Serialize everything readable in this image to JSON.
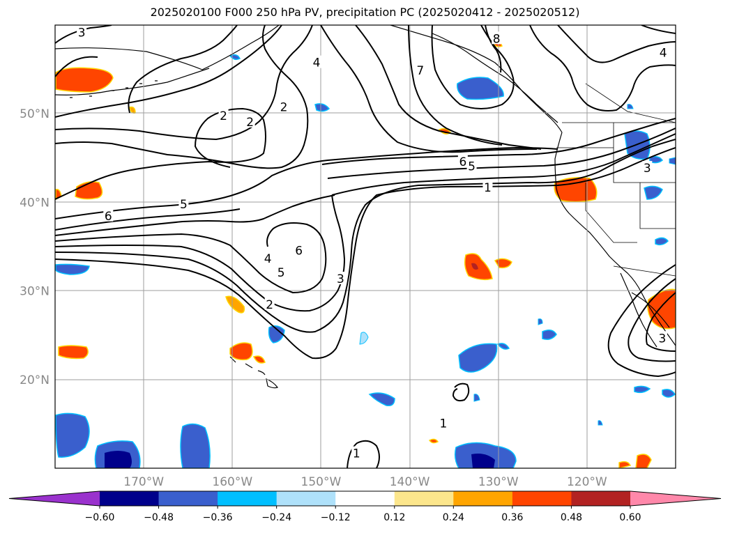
{
  "title": "2025020100 F000 250 hPa PV, precipitation PC (2025020412 - 2025020512)",
  "map": {
    "lon_range": [
      -180,
      -110
    ],
    "lat_range": [
      10,
      60
    ],
    "lat_ticks": [
      {
        "value": 50,
        "label": "50°N"
      },
      {
        "value": 40,
        "label": "40°N"
      },
      {
        "value": 30,
        "label": "30°N"
      },
      {
        "value": 20,
        "label": "20°N"
      }
    ],
    "lon_ticks": [
      {
        "value": -170,
        "label": "170°W"
      },
      {
        "value": -160,
        "label": "160°W"
      },
      {
        "value": -150,
        "label": "150°W"
      },
      {
        "value": -140,
        "label": "140°W"
      },
      {
        "value": -130,
        "label": "130°W"
      },
      {
        "value": -120,
        "label": "120°W"
      }
    ],
    "gridlines": true,
    "pv_contour_labels": [
      {
        "text": "3",
        "lon": -177.0,
        "lat": 59.1
      },
      {
        "text": "2",
        "lon": -161.0,
        "lat": 49.7
      },
      {
        "text": "2",
        "lon": -158.0,
        "lat": 49.0
      },
      {
        "text": "2",
        "lon": -154.2,
        "lat": 50.7
      },
      {
        "text": "4",
        "lon": -150.5,
        "lat": 55.7
      },
      {
        "text": "7",
        "lon": -138.8,
        "lat": 54.8
      },
      {
        "text": "6",
        "lon": -174.0,
        "lat": 38.4
      },
      {
        "text": "5",
        "lon": -165.5,
        "lat": 39.7
      },
      {
        "text": "4",
        "lon": -156.0,
        "lat": 33.6
      },
      {
        "text": "5",
        "lon": -154.5,
        "lat": 32.0
      },
      {
        "text": "6",
        "lon": -152.5,
        "lat": 34.5
      },
      {
        "text": "2",
        "lon": -155.8,
        "lat": 28.4
      },
      {
        "text": "3",
        "lon": -147.8,
        "lat": 31.3
      },
      {
        "text": "6",
        "lon": -134.0,
        "lat": 44.5
      },
      {
        "text": "5",
        "lon": -133.0,
        "lat": 44.0
      },
      {
        "text": "1",
        "lon": -131.2,
        "lat": 41.6
      },
      {
        "text": "4",
        "lon": -111.4,
        "lat": 56.8
      },
      {
        "text": "3",
        "lon": -113.2,
        "lat": 43.8
      },
      {
        "text": "3",
        "lon": -111.5,
        "lat": 24.6
      },
      {
        "text": "1",
        "lon": -146.0,
        "lat": 11.6
      },
      {
        "text": "1",
        "lon": -136.2,
        "lat": 15.0
      },
      {
        "text": "8",
        "lon": -130.2,
        "lat": 58.4
      }
    ]
  },
  "colorbar": {
    "colors": [
      "#9a32cd",
      "#00008b",
      "#3a5fcd",
      "#00bfff",
      "#afe1fa",
      "#ffffff",
      "#fce68c",
      "#ffa500",
      "#ff4500",
      "#b22222",
      "#ff88aa"
    ],
    "levels": [
      -0.6,
      -0.48,
      -0.36,
      -0.24,
      -0.12,
      0.12,
      0.24,
      0.36,
      0.48,
      0.6
    ],
    "labels": [
      "−0.60",
      "−0.48",
      "−0.36",
      "−0.24",
      "−0.12",
      "0.12",
      "0.24",
      "0.36",
      "0.48",
      "0.60"
    ]
  }
}
